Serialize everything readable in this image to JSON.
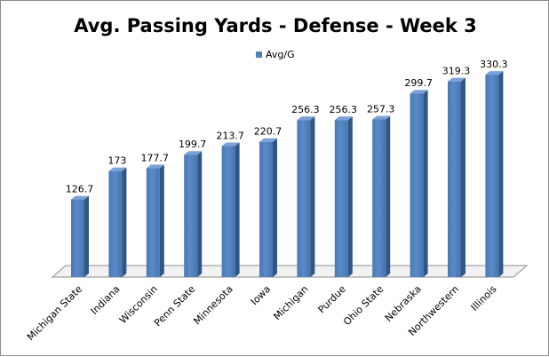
{
  "chart_data": {
    "type": "bar",
    "title": "Avg. Passing Yards - Defense - Week 3",
    "xlabel": "",
    "ylabel": "",
    "ylim": [
      0,
      400
    ],
    "grid": false,
    "legend_position": "top",
    "categories": [
      "Michigan State",
      "Indiana",
      "Wisconsin",
      "Penn State",
      "Minnesota",
      "Iowa",
      "Michigan",
      "Purdue",
      "Ohio State",
      "Nebraska",
      "Northwestern",
      "Illinois"
    ],
    "series": [
      {
        "name": "Avg/G",
        "color": "#4f81bd",
        "values": [
          126.7,
          173,
          177.7,
          199.7,
          213.7,
          220.7,
          256.3,
          256.3,
          257.3,
          299.7,
          319.3,
          330.3
        ],
        "labels": [
          "126.7",
          "173",
          "177.7",
          "199.7",
          "213.7",
          "220.7",
          "256.3",
          "256.3",
          "257.3",
          "299.7",
          "319.3",
          "330.3"
        ]
      }
    ]
  }
}
